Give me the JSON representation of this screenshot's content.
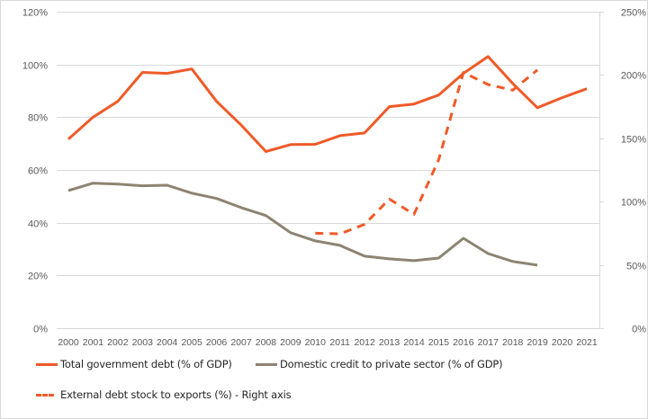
{
  "chart_data": {
    "type": "line",
    "title": "",
    "xlabel": "",
    "ylabel": "",
    "x": [
      "2000",
      "2001",
      "2002",
      "2003",
      "2004",
      "2005",
      "2006",
      "2007",
      "2008",
      "2009",
      "2010",
      "2011",
      "2012",
      "2013",
      "2014",
      "2015",
      "2016",
      "2017",
      "2018",
      "2019",
      "2020",
      "2021"
    ],
    "left_axis": {
      "ylim": [
        0,
        120
      ],
      "ticks": [
        "0%",
        "20%",
        "40%",
        "60%",
        "80%",
        "100%",
        "120%"
      ],
      "tick_values": [
        0,
        20,
        40,
        60,
        80,
        100,
        120
      ]
    },
    "right_axis": {
      "ylim": [
        0,
        250
      ],
      "ticks": [
        "0%",
        "50%",
        "100%",
        "150%",
        "200%",
        "250%"
      ],
      "tick_values": [
        0,
        50,
        100,
        150,
        200,
        250
      ]
    },
    "grid": true,
    "legend_position": "bottom",
    "series": [
      {
        "name": "Total government debt (% of GDP)",
        "axis": "left",
        "style": "solid",
        "color": "#F05A28",
        "values": [
          71.7,
          80,
          86,
          97,
          96.6,
          98.3,
          86,
          77,
          67,
          69.6,
          69.7,
          73,
          74,
          84,
          85,
          88.4,
          96.6,
          103,
          92.8,
          83.6,
          87.4,
          90.8
        ]
      },
      {
        "name": "Domestic credit to private sector (% of GDP)",
        "axis": "left",
        "style": "solid",
        "color": "#8C8472",
        "values": [
          52.2,
          55,
          54.6,
          54,
          54.2,
          51.2,
          49.2,
          45.7,
          42.7,
          36.2,
          33.1,
          31.4,
          27.3,
          26.3,
          25.6,
          26.6,
          34.1,
          28.3,
          25.3,
          23.9,
          null,
          null
        ]
      },
      {
        "name": "External debt stock to exports (%) - Right axis",
        "axis": "right",
        "style": "dashed",
        "color": "#F05A28",
        "values": [
          null,
          null,
          null,
          null,
          null,
          null,
          null,
          null,
          null,
          null,
          75,
          74.5,
          82,
          102,
          90,
          133,
          202,
          192.5,
          188,
          204,
          null,
          null
        ]
      }
    ]
  },
  "legend": {
    "items": [
      {
        "label": "Total government debt (% of GDP)",
        "color": "#F05A28",
        "style": "solid"
      },
      {
        "label": "Domestic credit to private sector (% of GDP)",
        "color": "#8C8472",
        "style": "solid"
      },
      {
        "label": "External debt stock to exports (%) - Right axis",
        "color": "#F05A28",
        "style": "dashed"
      }
    ]
  },
  "colors": {
    "grid": "#d9d9d9",
    "tick_text": "#595959",
    "border": "#d9d9d9"
  }
}
